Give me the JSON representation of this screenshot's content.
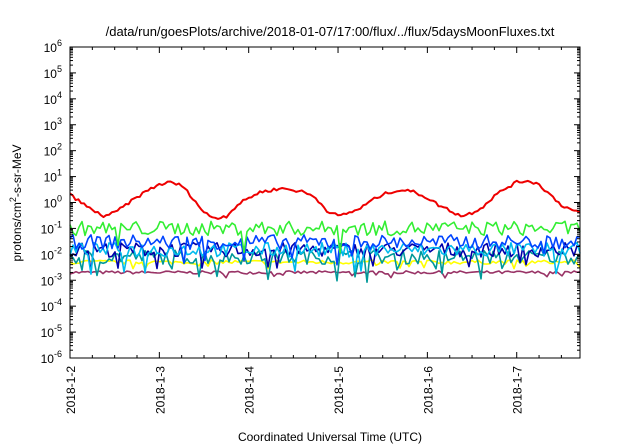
{
  "chart_data": {
    "type": "line",
    "title": "/data/run/goesPlots/archive/2018-01-07/17:00/flux/../flux/5daysMoonFluxes.txt",
    "xlabel": "Coordinated Universal Time (UTC)",
    "ylabel_parts": [
      "protons/cm",
      "2",
      "-s-sr-MeV"
    ],
    "y_scale": "log",
    "ylim": [
      1e-06,
      1000000.0
    ],
    "xlim": [
      "2018-01-02",
      "2018-01-07 17:00"
    ],
    "x_ticks": [
      "2018-1-2",
      "2018-1-3",
      "2018-1-4",
      "2018-1-5",
      "2018-1-6",
      "2018-1-7"
    ],
    "y_ticks": [
      {
        "base": "10",
        "exp": "-6",
        "value": 1e-06
      },
      {
        "base": "10",
        "exp": "-5",
        "value": 1e-05
      },
      {
        "base": "10",
        "exp": "-4",
        "value": 0.0001
      },
      {
        "base": "10",
        "exp": "-3",
        "value": 0.001
      },
      {
        "base": "10",
        "exp": "-2",
        "value": 0.01
      },
      {
        "base": "10",
        "exp": "-1",
        "value": 0.1
      },
      {
        "base": "10",
        "exp": "0",
        "value": 1
      },
      {
        "base": "10",
        "exp": "1",
        "value": 10
      },
      {
        "base": "10",
        "exp": "2",
        "value": 100
      },
      {
        "base": "10",
        "exp": "3",
        "value": 1000
      },
      {
        "base": "10",
        "exp": "4",
        "value": 10000
      },
      {
        "base": "10",
        "exp": "5",
        "value": 100000
      },
      {
        "base": "10",
        "exp": "6",
        "value": 1000000
      }
    ],
    "grid": false,
    "legend": "none",
    "series": [
      {
        "color": "#ee0000",
        "x": [
          "2018-01-02 00:00",
          "2018-01-02 03:00",
          "2018-01-02 06:00",
          "2018-01-02 09:00",
          "2018-01-02 12:00",
          "2018-01-02 15:00",
          "2018-01-02 18:00",
          "2018-01-02 21:00",
          "2018-01-03 00:00",
          "2018-01-03 03:00",
          "2018-01-03 06:00",
          "2018-01-03 09:00",
          "2018-01-03 12:00",
          "2018-01-03 15:00",
          "2018-01-03 18:00",
          "2018-01-03 21:00",
          "2018-01-04 00:00",
          "2018-01-04 03:00",
          "2018-01-04 06:00",
          "2018-01-04 09:00",
          "2018-01-04 12:00",
          "2018-01-04 15:00",
          "2018-01-04 18:00",
          "2018-01-04 21:00",
          "2018-01-05 00:00",
          "2018-01-05 03:00",
          "2018-01-05 06:00",
          "2018-01-05 09:00",
          "2018-01-05 12:00",
          "2018-01-05 15:00",
          "2018-01-05 18:00",
          "2018-01-05 21:00",
          "2018-01-06 00:00",
          "2018-01-06 03:00",
          "2018-01-06 06:00",
          "2018-01-06 09:00",
          "2018-01-06 12:00",
          "2018-01-06 15:00",
          "2018-01-06 18:00",
          "2018-01-06 21:00",
          "2018-01-07 00:00",
          "2018-01-07 03:00",
          "2018-01-07 06:00",
          "2018-01-07 09:00",
          "2018-01-07 12:00",
          "2018-01-07 15:00",
          "2018-01-07 17:00"
        ],
        "values": [
          2,
          1,
          0.5,
          0.3,
          0.4,
          0.8,
          1.6,
          3,
          5,
          6,
          4.5,
          1.5,
          0.4,
          0.25,
          0.3,
          0.8,
          1.5,
          2.5,
          3,
          3.5,
          3,
          2.5,
          1.5,
          0.5,
          0.3,
          0.4,
          0.6,
          1.2,
          2,
          2.8,
          3,
          2.4,
          1.5,
          0.8,
          0.5,
          0.3,
          0.4,
          0.7,
          1.8,
          3.5,
          6,
          7,
          5,
          2,
          0.8,
          0.5,
          0.4
        ]
      },
      {
        "color": "#33ee33",
        "values_approx": 0.1
      },
      {
        "color": "#0044ff",
        "values_approx": 0.03
      },
      {
        "color": "#00bbee",
        "values_approx": 0.015
      },
      {
        "color": "#0000aa",
        "values_approx": 0.015
      },
      {
        "color": "#009999",
        "values_approx": 0.008
      },
      {
        "color": "#ffff00",
        "values_approx": 0.005
      },
      {
        "color": "#993366",
        "values_approx": 0.002
      }
    ]
  }
}
